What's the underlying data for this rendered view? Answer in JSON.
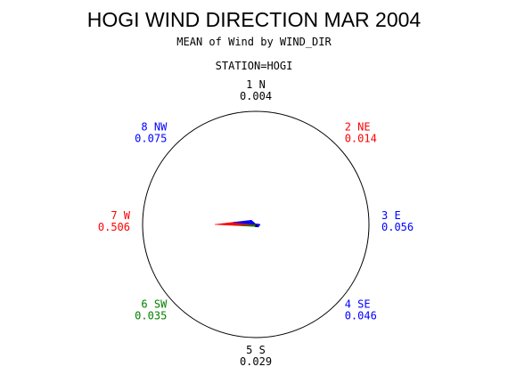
{
  "chart_data": {
    "type": "star",
    "title": "HOGI WIND DIRECTION MAR 2004",
    "subtitle": "MEAN of Wind by WIND_DIR",
    "group_label": "STATION=HOGI",
    "categories": [
      "1 N",
      "2 NE",
      "3 E",
      "4 SE",
      "5 S",
      "6 SW",
      "7 W",
      "8 NW"
    ],
    "values": [
      0.004,
      0.014,
      0.056,
      0.046,
      0.029,
      0.035,
      0.506,
      0.075
    ],
    "value_labels": [
      "0.004",
      "0.014",
      "0.056",
      "0.046",
      "0.029",
      "0.035",
      "0.506",
      "0.075"
    ],
    "colors": [
      "#000000",
      "#ff0000",
      "#0000ff",
      "#0000ff",
      "#000000",
      "#008000",
      "#ff0000",
      "#0000ff"
    ],
    "rlim": [
      0,
      1.4
    ]
  }
}
